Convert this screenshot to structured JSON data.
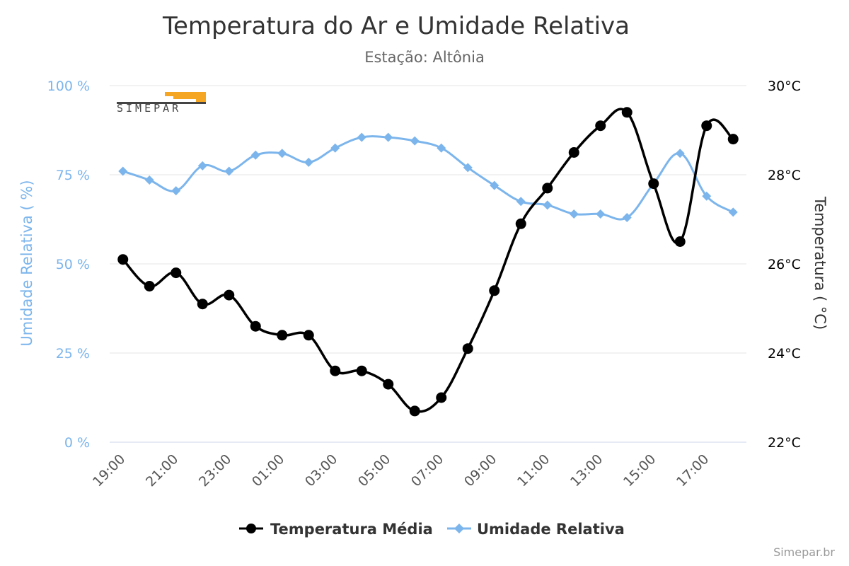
{
  "chart_data": {
    "type": "line",
    "title": "Temperatura do Ar e Umidade Relativa",
    "subtitle": "Estação: Altônia",
    "credits": "Simepar.br",
    "logo_text": "SIMEPAR",
    "categories": [
      "19:00",
      "20:00",
      "21:00",
      "22:00",
      "23:00",
      "00:00",
      "01:00",
      "02:00",
      "03:00",
      "04:00",
      "05:00",
      "06:00",
      "07:00",
      "08:00",
      "09:00",
      "10:00",
      "11:00",
      "12:00",
      "13:00",
      "14:00",
      "15:00",
      "16:00",
      "17:00",
      "18:00"
    ],
    "x_tick_labels": [
      "19:00",
      "21:00",
      "23:00",
      "01:00",
      "03:00",
      "05:00",
      "07:00",
      "09:00",
      "11:00",
      "13:00",
      "15:00",
      "17:00"
    ],
    "left_axis": {
      "title": "Umidade Relativa ( %)",
      "ylim": [
        0,
        100
      ],
      "ticks": [
        0,
        25,
        50,
        75,
        100
      ],
      "tick_labels": [
        "0 %",
        "25 %",
        "50 %",
        "75 %",
        "100 %"
      ],
      "color": "#7cb5ec"
    },
    "right_axis": {
      "title": "Temperatura ( °C)",
      "ylim": [
        22,
        30
      ],
      "ticks": [
        22,
        24,
        26,
        28,
        30
      ],
      "tick_labels": [
        "22°C",
        "24°C",
        "26°C",
        "28°C",
        "30°C"
      ],
      "color": "#000000"
    },
    "series": [
      {
        "name": "Temperatura Média",
        "axis": "right",
        "color": "#000000",
        "values": [
          26.1,
          25.5,
          25.8,
          25.1,
          25.3,
          24.6,
          24.4,
          24.4,
          23.6,
          23.6,
          23.3,
          22.7,
          23.0,
          24.1,
          25.4,
          26.9,
          27.7,
          28.5,
          29.1,
          29.4,
          27.8,
          26.5,
          29.1,
          28.8
        ]
      },
      {
        "name": "Umidade Relativa",
        "axis": "left",
        "color": "#7cb5ec",
        "values": [
          76,
          73.5,
          70.5,
          77.5,
          76,
          80.5,
          81,
          78.5,
          82.5,
          85.5,
          85.5,
          84.5,
          82.5,
          77,
          72,
          67.5,
          66.5,
          64,
          64,
          63,
          72.5,
          81,
          69,
          64.5
        ]
      }
    ],
    "grid": true,
    "legend_position": "bottom-center"
  }
}
